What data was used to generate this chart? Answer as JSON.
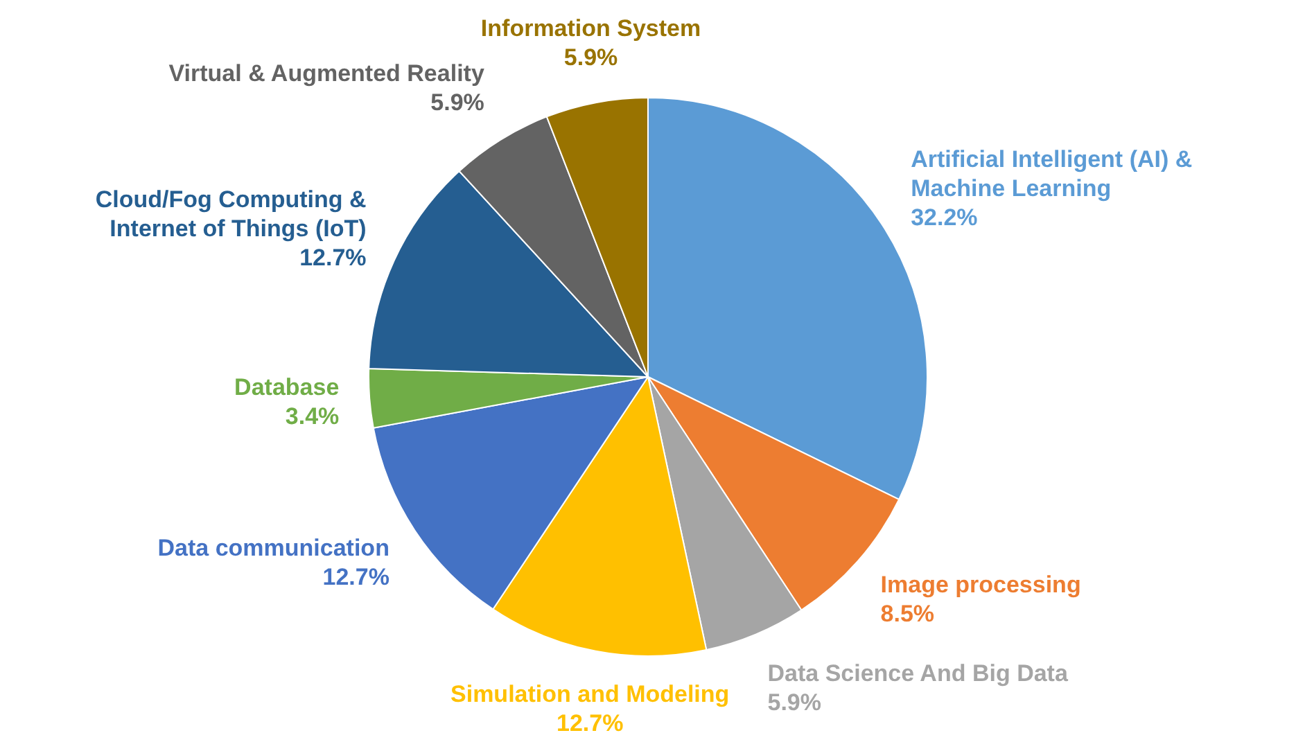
{
  "chart_data": {
    "type": "pie",
    "categories": [
      "Artificial Intelligent (AI) & Machine Learning",
      "Image processing",
      "Data Science And Big Data",
      "Simulation and Modeling",
      "Data communication",
      "Database",
      "Cloud/Fog Computing & Internet of Things (IoT)",
      "Virtual & Augmented Reality",
      "Information System"
    ],
    "values": [
      32.2,
      8.5,
      5.9,
      12.7,
      12.7,
      3.4,
      12.7,
      5.9,
      5.9
    ],
    "colors": [
      "#5b9bd5",
      "#ed7d31",
      "#a5a5a5",
      "#ffc000",
      "#4472c4",
      "#70ad47",
      "#255e91",
      "#636363",
      "#997300"
    ],
    "value_labels": [
      "32.2%",
      "8.5%",
      "5.9%",
      "12.7%",
      "12.7%",
      "3.4%",
      "12.7%",
      "5.9%",
      "5.9%"
    ],
    "legend": false
  }
}
